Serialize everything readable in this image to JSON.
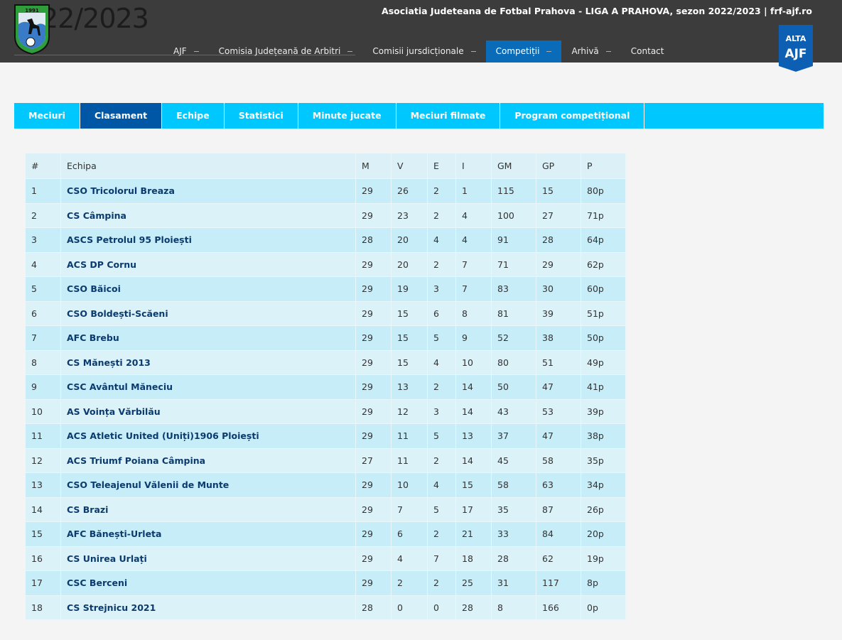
{
  "header": {
    "logo_text": "1991",
    "season": "22/2023",
    "site_title": "Asociatia Judeteana de Fotbal Prahova - LIGA A PRAHOVA, sezon 2022/2023 | frf-ajf.ro",
    "nav": [
      "AJF",
      "Comisia Județeană de Arbitri",
      "Comisii jursdicționale",
      "Competiții",
      "Arhivă",
      "Contact"
    ],
    "nav_active": 3,
    "badge": [
      "ALTA",
      "AJF"
    ]
  },
  "tabs": {
    "items": [
      "Meciuri",
      "Clasament",
      "Echipe",
      "Statistici",
      "Minute jucate",
      "Meciuri filmate",
      "Program competițional"
    ],
    "active": 1
  },
  "table": {
    "columns": [
      "#",
      "Echipa",
      "M",
      "V",
      "E",
      "I",
      "GM",
      "GP",
      "P"
    ],
    "rows": [
      [
        1,
        "CSO Tricolorul Breaza",
        29,
        26,
        2,
        1,
        115,
        15,
        "80p"
      ],
      [
        2,
        "CS Câmpina",
        29,
        23,
        2,
        4,
        100,
        27,
        "71p"
      ],
      [
        3,
        "ASCS Petrolul 95 Ploiești",
        28,
        20,
        4,
        4,
        91,
        28,
        "64p"
      ],
      [
        4,
        "ACS DP Cornu",
        29,
        20,
        2,
        7,
        71,
        29,
        "62p"
      ],
      [
        5,
        "CSO Băicoi",
        29,
        19,
        3,
        7,
        83,
        30,
        "60p"
      ],
      [
        6,
        "CSO Boldești-Scăeni",
        29,
        15,
        6,
        8,
        81,
        39,
        "51p"
      ],
      [
        7,
        "AFC Brebu",
        29,
        15,
        5,
        9,
        52,
        38,
        "50p"
      ],
      [
        8,
        "CS Mănești 2013",
        29,
        15,
        4,
        10,
        80,
        51,
        "49p"
      ],
      [
        9,
        "CSC Avântul Măneciu",
        29,
        13,
        2,
        14,
        50,
        47,
        "41p"
      ],
      [
        10,
        "AS Voința Vărbilău",
        29,
        12,
        3,
        14,
        43,
        53,
        "39p"
      ],
      [
        11,
        "ACS Atletic United (Uniți)1906 Ploiești",
        29,
        11,
        5,
        13,
        37,
        47,
        "38p"
      ],
      [
        12,
        "ACS Triumf Poiana Câmpina",
        27,
        11,
        2,
        14,
        45,
        58,
        "35p"
      ],
      [
        13,
        "CSO Teleajenul Vălenii de Munte",
        29,
        10,
        4,
        15,
        58,
        63,
        "34p"
      ],
      [
        14,
        "CS Brazi",
        29,
        7,
        5,
        17,
        35,
        87,
        "26p"
      ],
      [
        15,
        "AFC Bănești-Urleta",
        29,
        6,
        2,
        21,
        33,
        84,
        "20p"
      ],
      [
        16,
        "CS Unirea Urlați",
        29,
        4,
        7,
        18,
        28,
        62,
        "19p"
      ],
      [
        17,
        "CSC Berceni",
        29,
        2,
        2,
        25,
        31,
        117,
        "8p"
      ],
      [
        18,
        "CS Strejnicu 2021",
        28,
        0,
        0,
        28,
        8,
        166,
        "0p"
      ]
    ]
  }
}
